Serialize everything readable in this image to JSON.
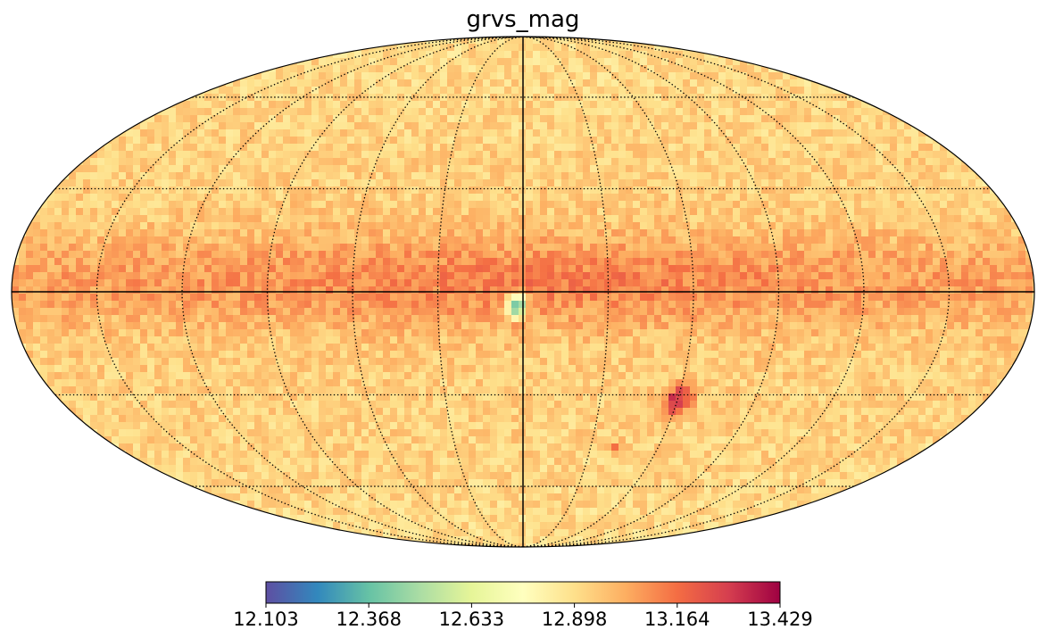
{
  "chart_data": {
    "type": "heatmap",
    "title": "grvs_mag",
    "projection": "mollweide",
    "colormap": "Spectral_r",
    "colorbar": {
      "orientation": "horizontal",
      "min": 12.103,
      "max": 13.429,
      "ticks": [
        "12.103",
        "12.368",
        "12.633",
        "12.898",
        "13.164",
        "13.429"
      ],
      "stops": [
        "#5e4fa2",
        "#3288bd",
        "#66c2a5",
        "#abdda4",
        "#e6f598",
        "#ffffbf",
        "#fee08b",
        "#fdae61",
        "#f46d43",
        "#d53e4f",
        "#9e0142"
      ]
    },
    "graticule": {
      "dotted": true,
      "lon_step_deg": 30,
      "lat_step_deg": 30,
      "center_lines_solid": true
    },
    "map_features": [
      {
        "label": "galactic plane band",
        "lat_center": 0,
        "value": 13.1
      },
      {
        "label": "bright spot near center",
        "lon": 2,
        "lat": -4,
        "value": 12.35
      },
      {
        "label": "large faint patch",
        "lon": -60,
        "lat": -32,
        "value": 13.38
      },
      {
        "label": "small faint patch",
        "lon": -42,
        "lat": -47,
        "value": 13.25
      }
    ],
    "background_value": 12.95
  }
}
